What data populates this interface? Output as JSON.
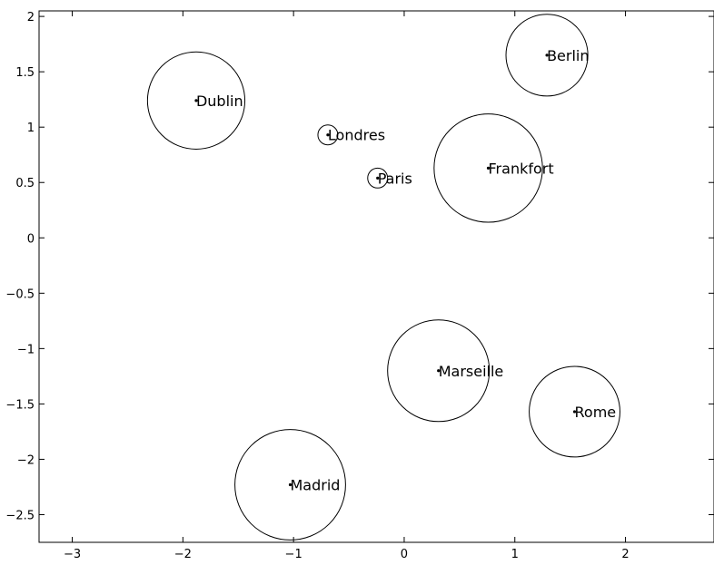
{
  "chart_data": {
    "type": "scatter",
    "title": "",
    "xlabel": "",
    "ylabel": "",
    "xlim": [
      -3.3,
      2.8
    ],
    "ylim": [
      -2.75,
      2.05
    ],
    "xticks": [
      -3,
      -2,
      -1,
      0,
      1,
      2
    ],
    "yticks": [
      2,
      1.5,
      1,
      0.5,
      0,
      -0.5,
      -1,
      -1.5,
      -2,
      -2.5
    ],
    "grid": false,
    "legend": "none",
    "marker": "point with circle (radius in x-axis units)",
    "color": "#000000",
    "points": [
      {
        "label": "Dublin",
        "x": -1.88,
        "y": 1.24,
        "r": 0.44
      },
      {
        "label": "Londres",
        "x": -0.69,
        "y": 0.93,
        "r": 0.09
      },
      {
        "label": "Paris",
        "x": -0.24,
        "y": 0.54,
        "r": 0.09
      },
      {
        "label": "Berlin",
        "x": 1.29,
        "y": 1.65,
        "r": 0.37
      },
      {
        "label": "Frankfort",
        "x": 0.76,
        "y": 0.63,
        "r": 0.49
      },
      {
        "label": "Marseille",
        "x": 0.31,
        "y": -1.2,
        "r": 0.46
      },
      {
        "label": "Rome",
        "x": 1.54,
        "y": -1.57,
        "r": 0.41
      },
      {
        "label": "Madrid",
        "x": -1.03,
        "y": -2.23,
        "r": 0.5
      }
    ]
  }
}
